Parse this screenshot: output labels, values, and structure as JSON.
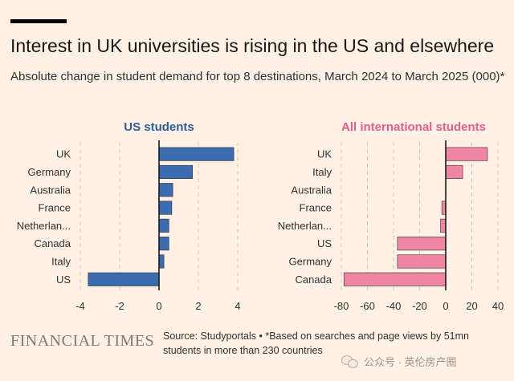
{
  "title": "Interest in UK universities is rising in the US and elsewhere",
  "subtitle": "Absolute change in student demand for top 8 destinations, March 2024 to March 2025 (000)*",
  "source": "Source: Studyportals • *Based on searches and page views by 51mn students in more than 230 countries",
  "brand": "FINANCIAL TIMES",
  "watermark": "公众号 · 英伦房产圈",
  "watermark_icon": "wechat-icon",
  "colors": {
    "background": "#fff1e5",
    "us_bar": "#3c6bb0",
    "intl_bar": "#ef87a4",
    "title_us": "#2e5b9a",
    "title_intl": "#e0608a",
    "grid": "#d6c6b8",
    "zero_line": "#1a1817"
  },
  "chart_data": [
    {
      "type": "bar",
      "orientation": "horizontal",
      "title": "US students",
      "categories": [
        "UK",
        "Germany",
        "Australia",
        "France",
        "Netherlan...",
        "Canada",
        "Italy",
        "US"
      ],
      "values": [
        3.8,
        1.7,
        0.7,
        0.65,
        0.5,
        0.5,
        0.25,
        -3.6
      ],
      "xlim": [
        -4,
        4
      ],
      "xticks": [
        -4,
        -2,
        0,
        2,
        4
      ],
      "grid": true
    },
    {
      "type": "bar",
      "orientation": "horizontal",
      "title": "All international students",
      "categories": [
        "UK",
        "Italy",
        "Australia",
        "France",
        "Netherlan...",
        "US",
        "Germany",
        "Canada"
      ],
      "values": [
        32,
        13,
        0,
        -3,
        -4,
        -37,
        -37,
        -78
      ],
      "xlim": [
        -80,
        40
      ],
      "xticks": [
        -80,
        -60,
        -40,
        -20,
        0,
        20,
        40
      ],
      "grid": true
    }
  ]
}
